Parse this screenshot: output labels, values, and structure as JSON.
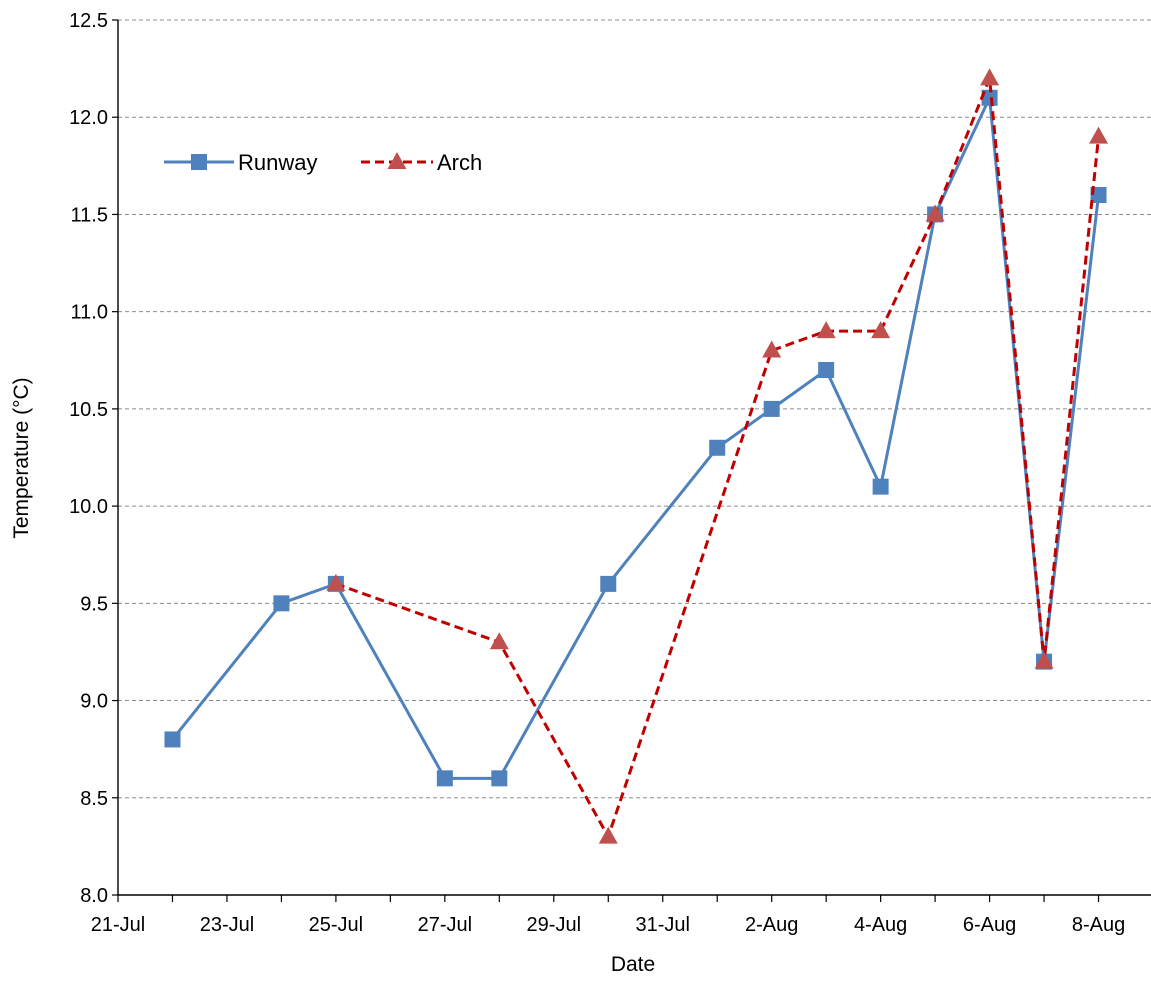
{
  "chart_data": {
    "type": "line",
    "xlabel": "Date",
    "ylabel": "Temperature (°C)",
    "ylim": [
      8.0,
      12.5
    ],
    "yticks": [
      "8.0",
      "8.5",
      "9.0",
      "9.5",
      "10.0",
      "10.5",
      "11.0",
      "11.5",
      "12.0",
      "12.5"
    ],
    "xlim": [
      "2023-07-21",
      "2023-08-09"
    ],
    "xticks": [
      {
        "date": "2023-07-21",
        "label": "21-Jul"
      },
      {
        "date": "2023-07-23",
        "label": "23-Jul"
      },
      {
        "date": "2023-07-25",
        "label": "25-Jul"
      },
      {
        "date": "2023-07-27",
        "label": "27-Jul"
      },
      {
        "date": "2023-07-29",
        "label": "29-Jul"
      },
      {
        "date": "2023-07-31",
        "label": "31-Jul"
      },
      {
        "date": "2023-08-02",
        "label": "2-Aug"
      },
      {
        "date": "2023-08-04",
        "label": "4-Aug"
      },
      {
        "date": "2023-08-06",
        "label": "6-Aug"
      },
      {
        "date": "2023-08-08",
        "label": "8-Aug"
      }
    ],
    "grid": "horizontal-dashed",
    "legend_position": "top-left",
    "series": [
      {
        "name": "Runway",
        "color": "#4F81BD",
        "line_style": "solid",
        "marker": "square",
        "points": [
          {
            "x": "2023-07-22",
            "y": 8.8
          },
          {
            "x": "2023-07-24",
            "y": 9.5
          },
          {
            "x": "2023-07-25",
            "y": 9.6
          },
          {
            "x": "2023-07-27",
            "y": 8.6
          },
          {
            "x": "2023-07-28",
            "y": 8.6
          },
          {
            "x": "2023-07-30",
            "y": 9.6
          },
          {
            "x": "2023-08-01",
            "y": 10.3
          },
          {
            "x": "2023-08-02",
            "y": 10.5
          },
          {
            "x": "2023-08-03",
            "y": 10.7
          },
          {
            "x": "2023-08-04",
            "y": 10.1
          },
          {
            "x": "2023-08-05",
            "y": 11.5
          },
          {
            "x": "2023-08-06",
            "y": 12.1
          },
          {
            "x": "2023-08-07",
            "y": 9.2
          },
          {
            "x": "2023-08-08",
            "y": 11.6
          }
        ]
      },
      {
        "name": "Arch",
        "color": "#C0504D",
        "line_color": "#C00000",
        "line_style": "dashed",
        "marker": "triangle",
        "points": [
          {
            "x": "2023-07-25",
            "y": 9.6
          },
          {
            "x": "2023-07-28",
            "y": 9.3
          },
          {
            "x": "2023-07-30",
            "y": 8.3
          },
          {
            "x": "2023-08-02",
            "y": 10.8
          },
          {
            "x": "2023-08-03",
            "y": 10.9
          },
          {
            "x": "2023-08-04",
            "y": 10.9
          },
          {
            "x": "2023-08-05",
            "y": 11.5
          },
          {
            "x": "2023-08-06",
            "y": 12.2
          },
          {
            "x": "2023-08-07",
            "y": 9.2
          },
          {
            "x": "2023-08-08",
            "y": 11.9
          }
        ]
      }
    ]
  }
}
